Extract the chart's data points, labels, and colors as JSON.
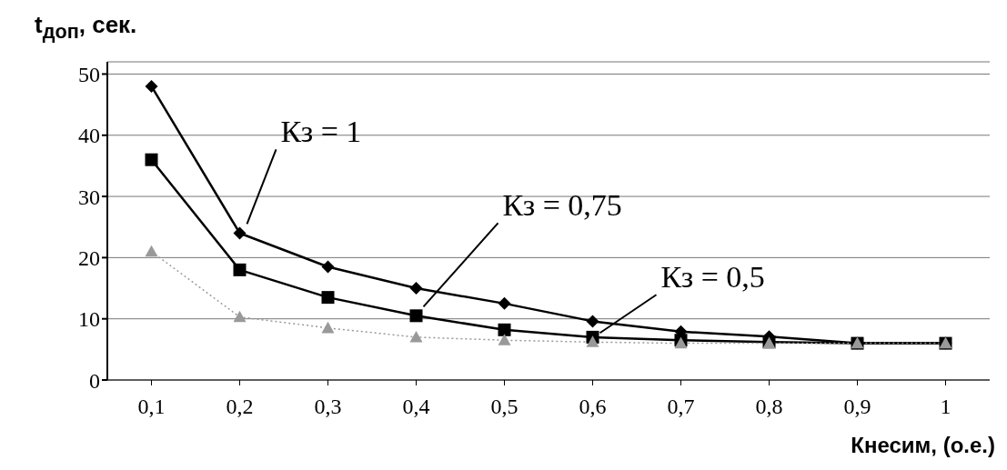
{
  "chart_data": {
    "type": "line",
    "ylabel": "t$_{доп}$, сек.",
    "xlabel": "Кнесим, (о.е.)",
    "x": [
      0.1,
      0.2,
      0.3,
      0.4,
      0.5,
      0.6,
      0.7,
      0.8,
      0.9,
      1
    ],
    "xlim": [
      0.05,
      1.05
    ],
    "xticks": [
      {
        "value": 0.1,
        "label": "0,1"
      },
      {
        "value": 0.2,
        "label": "0,2"
      },
      {
        "value": 0.3,
        "label": "0,3"
      },
      {
        "value": 0.4,
        "label": "0,4"
      },
      {
        "value": 0.5,
        "label": "0,5"
      },
      {
        "value": 0.6,
        "label": "0,6"
      },
      {
        "value": 0.7,
        "label": "0,7"
      },
      {
        "value": 0.8,
        "label": "0,8"
      },
      {
        "value": 0.9,
        "label": "0,9"
      },
      1
    ],
    "ylim": [
      0,
      52
    ],
    "yticks": [
      0,
      10,
      20,
      30,
      40,
      50
    ],
    "grid": "y",
    "series": [
      {
        "name": "Кз = 1",
        "color": "#000000",
        "marker": "diamond",
        "line_style": "solid",
        "values": [
          48,
          24,
          18.5,
          15,
          12.5,
          9.6,
          7.9,
          7.1,
          6,
          6
        ]
      },
      {
        "name": "Кз = 0,75",
        "color": "#000000",
        "marker": "square",
        "line_style": "solid",
        "values": [
          36,
          18,
          13.5,
          10.5,
          8.2,
          7,
          6.5,
          6.2,
          6,
          6
        ]
      },
      {
        "name": "Кз = 0,5",
        "color": "#999999",
        "marker": "triangle",
        "line_style": "dotted",
        "values": [
          21,
          10.3,
          8.5,
          7,
          6.5,
          6.2,
          6,
          6,
          6,
          6
        ]
      }
    ]
  }
}
